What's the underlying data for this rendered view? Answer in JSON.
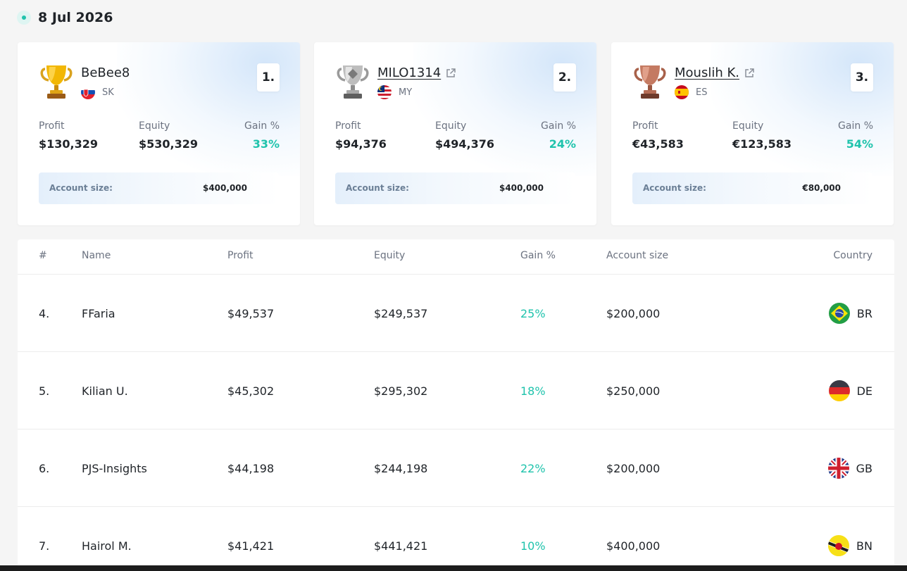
{
  "date": "8 Jul 2026",
  "top_three": [
    {
      "rank": "1.",
      "name": "BeBee8",
      "linked": false,
      "country": "SK",
      "trophy": "gold-trophy-icon",
      "profit_label": "Profit",
      "profit": "$130,329",
      "equity_label": "Equity",
      "equity": "$530,329",
      "gain_label": "Gain %",
      "gain": "33%",
      "account_label": "Account size:",
      "account_size": "$400,000"
    },
    {
      "rank": "2.",
      "name": "MILO1314",
      "linked": true,
      "country": "MY",
      "trophy": "silver-trophy-icon",
      "profit_label": "Profit",
      "profit": "$94,376",
      "equity_label": "Equity",
      "equity": "$494,376",
      "gain_label": "Gain %",
      "gain": "24%",
      "account_label": "Account size:",
      "account_size": "$400,000"
    },
    {
      "rank": "3.",
      "name": "Mouslih K.",
      "linked": true,
      "country": "ES",
      "trophy": "bronze-trophy-icon",
      "profit_label": "Profit",
      "profit": "€43,583",
      "equity_label": "Equity",
      "equity": "€123,583",
      "gain_label": "Gain %",
      "gain": "54%",
      "account_label": "Account size:",
      "account_size": "€80,000"
    }
  ],
  "table": {
    "headers": {
      "rank": "#",
      "name": "Name",
      "profit": "Profit",
      "equity": "Equity",
      "gain": "Gain %",
      "account": "Account size",
      "country": "Country"
    },
    "rows": [
      {
        "rank": "4.",
        "name": "FFaria",
        "profit": "$49,537",
        "equity": "$249,537",
        "gain": "25%",
        "account": "$200,000",
        "country": "BR"
      },
      {
        "rank": "5.",
        "name": "Kilian U.",
        "profit": "$45,302",
        "equity": "$295,302",
        "gain": "18%",
        "account": "$250,000",
        "country": "DE"
      },
      {
        "rank": "6.",
        "name": "PJS-Insights",
        "profit": "$44,198",
        "equity": "$244,198",
        "gain": "22%",
        "account": "$200,000",
        "country": "GB"
      },
      {
        "rank": "7.",
        "name": "Hairol M.",
        "profit": "$41,421",
        "equity": "$441,421",
        "gain": "10%",
        "account": "$400,000",
        "country": "BN"
      }
    ]
  },
  "colors": {
    "accent_gain": "#1fc3ac",
    "text_primary": "#1f2328",
    "text_muted": "#6b7280"
  }
}
